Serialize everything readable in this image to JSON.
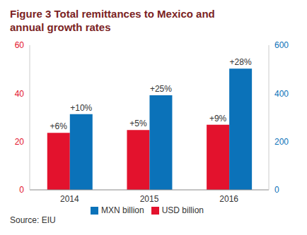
{
  "chart_data": {
    "type": "bar",
    "title": "Figure 3 Total remittances to Mexico and annual growth rates",
    "source": "Source: EIU",
    "categories": [
      "2014",
      "2015",
      "2016"
    ],
    "series": [
      {
        "name": "USD billion",
        "color": "#e3122d",
        "values": [
          23.6,
          24.8,
          27.0
        ],
        "growth_labels": [
          "+6%",
          "+5%",
          "+9%"
        ]
      },
      {
        "name": "MXN billion",
        "color": "#0b72b9",
        "axis": "y2",
        "values": [
          314,
          392,
          503
        ],
        "growth_labels": [
          "+10%",
          "+25%",
          "+28%"
        ]
      }
    ],
    "ylim": [
      0,
      60
    ],
    "yticks": [
      0,
      20,
      40,
      60
    ],
    "y2lim": [
      0,
      600
    ],
    "y2ticks": [
      0,
      200,
      400,
      600
    ],
    "grid": false,
    "legend": "bottom"
  }
}
